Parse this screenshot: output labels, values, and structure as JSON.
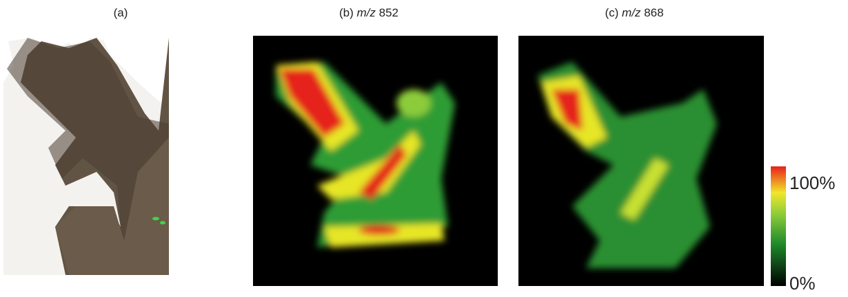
{
  "panels": [
    {
      "label": "(a)"
    },
    {
      "label": "(b)",
      "ion": "m/z",
      "mass": "852"
    },
    {
      "label": "(c)",
      "ion": "m/z",
      "mass": "868"
    }
  ],
  "colorbar": {
    "max_label": "100%",
    "min_label": "0%"
  }
}
